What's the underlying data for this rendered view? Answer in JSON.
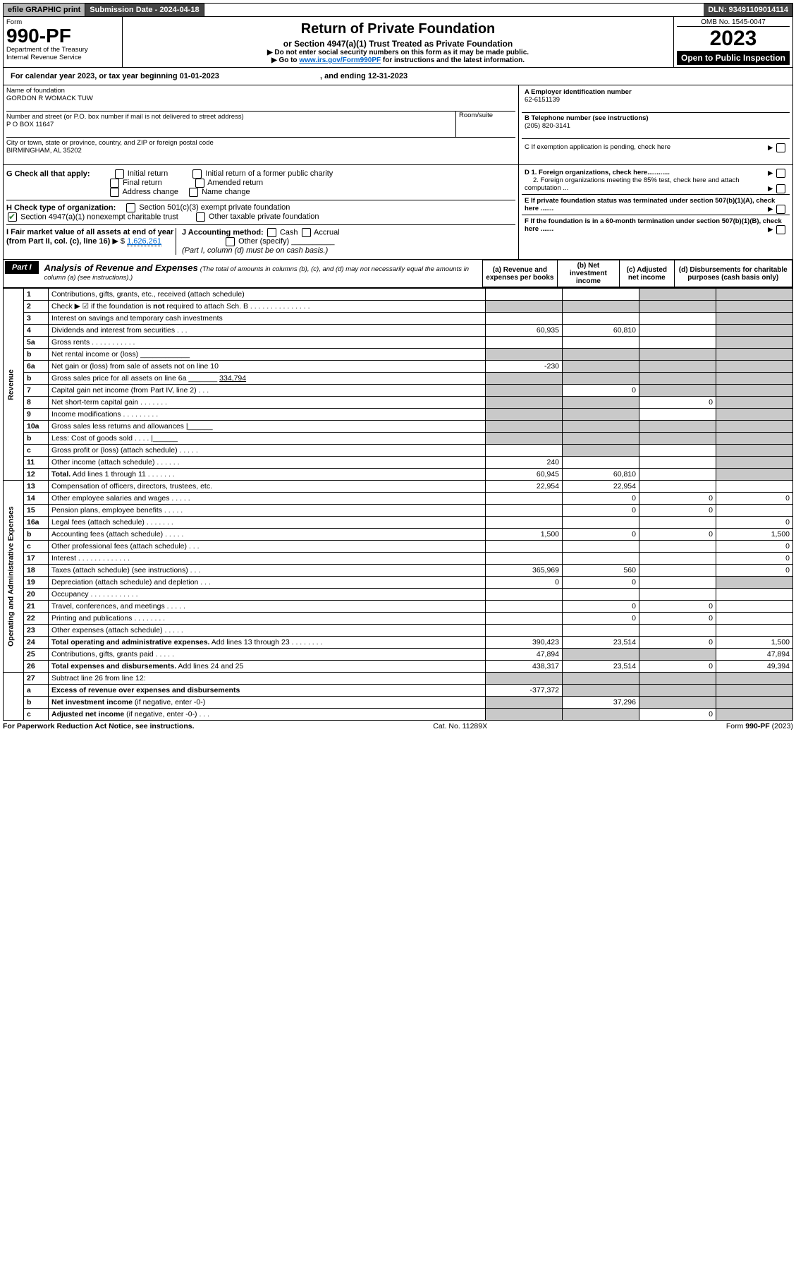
{
  "topbar": {
    "efile": "efile GRAPHIC print",
    "submission": "Submission Date - 2024-04-18",
    "dln": "DLN: 93491109014114"
  },
  "header": {
    "form_word": "Form",
    "form_num": "990-PF",
    "dept": "Department of the Treasury",
    "irs": "Internal Revenue Service",
    "title": "Return of Private Foundation",
    "subtitle": "or Section 4947(a)(1) Trust Treated as Private Foundation",
    "instr1": "▶ Do not enter social security numbers on this form as it may be made public.",
    "instr2_pre": "▶ Go to ",
    "instr2_link": "www.irs.gov/Form990PF",
    "instr2_post": " for instructions and the latest information.",
    "omb": "OMB No. 1545-0047",
    "year": "2023",
    "open": "Open to Public Inspection"
  },
  "calendar": {
    "text_pre": "For calendar year 2023, or tax year beginning ",
    "begin": "01-01-2023",
    "text_mid": " , and ending ",
    "end": "12-31-2023"
  },
  "entity": {
    "name_lbl": "Name of foundation",
    "name": "GORDON R WOMACK TUW",
    "addr_lbl": "Number and street (or P.O. box number if mail is not delivered to street address)",
    "room_lbl": "Room/suite",
    "addr": "P O BOX 11647",
    "city_lbl": "City or town, state or province, country, and ZIP or foreign postal code",
    "city": "BIRMINGHAM, AL  35202",
    "ein_lbl": "A Employer identification number",
    "ein": "62-6151139",
    "phone_lbl": "B Telephone number (see instructions)",
    "phone": "(205) 820-3141",
    "c_lbl": "C If exemption application is pending, check here"
  },
  "checks": {
    "g_lbl": "G Check all that apply:",
    "g_opts": [
      "Initial return",
      "Final return",
      "Address change",
      "Initial return of a former public charity",
      "Amended return",
      "Name change"
    ],
    "h_lbl": "H Check type of organization:",
    "h_501": "Section 501(c)(3) exempt private foundation",
    "h_4947": "Section 4947(a)(1) nonexempt charitable trust",
    "h_other": "Other taxable private foundation",
    "d1": "D 1. Foreign organizations, check here............",
    "d2": "2. Foreign organizations meeting the 85% test, check here and attach computation ...",
    "e": "E  If private foundation status was terminated under section 507(b)(1)(A), check here .......",
    "f": "F  If the foundation is in a 60-month termination under section 507(b)(1)(B), check here .......",
    "i_lbl": "I Fair market value of all assets at end of year (from Part II, col. (c), line 16)",
    "i_val": "1,626,261",
    "j_lbl": "J Accounting method:",
    "j_cash": "Cash",
    "j_accrual": "Accrual",
    "j_other": "Other (specify)",
    "j_note": "(Part I, column (d) must be on cash basis.)"
  },
  "part1": {
    "label": "Part I",
    "title": "Analysis of Revenue and Expenses",
    "title_note": " (The total of amounts in columns (b), (c), and (d) may not necessarily equal the amounts in column (a) (see instructions).)",
    "col_a": "(a)  Revenue and expenses per books",
    "col_b": "(b)  Net investment income",
    "col_c": "(c)  Adjusted net income",
    "col_d": "(d)  Disbursements for charitable purposes (cash basis only)"
  },
  "sections": {
    "revenue": "Revenue",
    "expenses": "Operating and Administrative Expenses"
  },
  "rows": [
    {
      "n": "1",
      "t": "Contributions, gifts, grants, etc., received (attach schedule)",
      "a": "",
      "b": "",
      "c": "grey",
      "d": "grey"
    },
    {
      "n": "2",
      "t": "Check ▶ ☑ if the foundation is <b>not</b> required to attach Sch. B   .  .  .  .  .  .  .  .  .  .  .  .  .  .  .",
      "a": "grey",
      "b": "grey",
      "c": "grey",
      "d": "grey"
    },
    {
      "n": "3",
      "t": "Interest on savings and temporary cash investments",
      "a": "",
      "b": "",
      "c": "",
      "d": "grey"
    },
    {
      "n": "4",
      "t": "Dividends and interest from securities   .   .   .",
      "a": "60,935",
      "b": "60,810",
      "c": "",
      "d": "grey"
    },
    {
      "n": "5a",
      "t": "Gross rents   .   .   .   .   .   .   .   .   .   .   .",
      "a": "",
      "b": "",
      "c": "",
      "d": "grey"
    },
    {
      "n": "b",
      "t": "Net rental income or (loss)  ____________",
      "a": "grey",
      "b": "grey",
      "c": "grey",
      "d": "grey"
    },
    {
      "n": "6a",
      "t": "Net gain or (loss) from sale of assets not on line 10",
      "a": "-230",
      "b": "grey",
      "c": "grey",
      "d": "grey"
    },
    {
      "n": "b",
      "t": "Gross sales price for all assets on line 6a _______ <u>334,794</u>",
      "a": "grey",
      "b": "grey",
      "c": "grey",
      "d": "grey"
    },
    {
      "n": "7",
      "t": "Capital gain net income (from Part IV, line 2)   .   .   .",
      "a": "grey",
      "b": "0",
      "c": "grey",
      "d": "grey"
    },
    {
      "n": "8",
      "t": "Net short-term capital gain   .   .   .   .   .   .   .",
      "a": "grey",
      "b": "grey",
      "c": "0",
      "d": "grey"
    },
    {
      "n": "9",
      "t": "Income modifications   .   .   .   .   .   .   .   .   .",
      "a": "grey",
      "b": "grey",
      "c": "",
      "d": "grey"
    },
    {
      "n": "10a",
      "t": "Gross sales less returns and allowances  |______",
      "a": "grey",
      "b": "grey",
      "c": "grey",
      "d": "grey"
    },
    {
      "n": "b",
      "t": "Less: Cost of goods sold   .   .   .   .   |______",
      "a": "grey",
      "b": "grey",
      "c": "grey",
      "d": "grey"
    },
    {
      "n": "c",
      "t": "Gross profit or (loss) (attach schedule)   .   .   .   .   .",
      "a": "",
      "b": "grey",
      "c": "",
      "d": "grey"
    },
    {
      "n": "11",
      "t": "Other income (attach schedule)   .   .   .   .   .   .",
      "a": "240",
      "b": "",
      "c": "",
      "d": "grey"
    },
    {
      "n": "12",
      "t": "<b>Total.</b> Add lines 1 through 11   .   .   .   .   .   .   .",
      "a": "60,945",
      "b": "60,810",
      "c": "",
      "d": "grey"
    }
  ],
  "exp_rows": [
    {
      "n": "13",
      "t": "Compensation of officers, directors, trustees, etc.",
      "a": "22,954",
      "b": "22,954",
      "c": "",
      "d": ""
    },
    {
      "n": "14",
      "t": "Other employee salaries and wages   .   .   .   .   .",
      "a": "",
      "b": "0",
      "c": "0",
      "d": "0"
    },
    {
      "n": "15",
      "t": "Pension plans, employee benefits   .   .   .   .   .",
      "a": "",
      "b": "0",
      "c": "0",
      "d": ""
    },
    {
      "n": "16a",
      "t": "Legal fees (attach schedule)  .   .   .   .   .   .   .",
      "a": "",
      "b": "",
      "c": "",
      "d": "0"
    },
    {
      "n": "b",
      "t": "Accounting fees (attach schedule)  .   .   .   .   .",
      "a": "1,500",
      "b": "0",
      "c": "0",
      "d": "1,500"
    },
    {
      "n": "c",
      "t": "Other professional fees (attach schedule)   .   .   .",
      "a": "",
      "b": "",
      "c": "",
      "d": "0"
    },
    {
      "n": "17",
      "t": "Interest  .   .   .   .   .   .   .   .   .   .   .   .   .",
      "a": "",
      "b": "",
      "c": "",
      "d": "0"
    },
    {
      "n": "18",
      "t": "Taxes (attach schedule) (see instructions)   .   .   .",
      "a": "365,969",
      "b": "560",
      "c": "",
      "d": "0"
    },
    {
      "n": "19",
      "t": "Depreciation (attach schedule) and depletion   .   .   .",
      "a": "0",
      "b": "0",
      "c": "",
      "d": "grey"
    },
    {
      "n": "20",
      "t": "Occupancy  .   .   .   .   .   .   .   .   .   .   .   .",
      "a": "",
      "b": "",
      "c": "",
      "d": ""
    },
    {
      "n": "21",
      "t": "Travel, conferences, and meetings  .   .   .   .   .",
      "a": "",
      "b": "0",
      "c": "0",
      "d": ""
    },
    {
      "n": "22",
      "t": "Printing and publications  .   .   .   .   .   .   .   .",
      "a": "",
      "b": "0",
      "c": "0",
      "d": ""
    },
    {
      "n": "23",
      "t": "Other expenses (attach schedule)  .   .   .   .   .",
      "a": "",
      "b": "",
      "c": "",
      "d": ""
    },
    {
      "n": "24",
      "t": "<b>Total operating and administrative expenses.</b> Add lines 13 through 23   .   .   .   .   .   .   .   .",
      "a": "390,423",
      "b": "23,514",
      "c": "0",
      "d": "1,500"
    },
    {
      "n": "25",
      "t": "Contributions, gifts, grants paid   .   .   .   .   .",
      "a": "47,894",
      "b": "grey",
      "c": "grey",
      "d": "47,894"
    },
    {
      "n": "26",
      "t": "<b>Total expenses and disbursements.</b> Add lines 24 and 25",
      "a": "438,317",
      "b": "23,514",
      "c": "0",
      "d": "49,394"
    }
  ],
  "bottom_rows": [
    {
      "n": "27",
      "t": "Subtract line 26 from line 12:",
      "a": "grey",
      "b": "grey",
      "c": "grey",
      "d": "grey"
    },
    {
      "n": "a",
      "t": "<b>Excess of revenue over expenses and disbursements</b>",
      "a": "-377,372",
      "b": "grey",
      "c": "grey",
      "d": "grey"
    },
    {
      "n": "b",
      "t": "<b>Net investment income</b> (if negative, enter -0-)",
      "a": "grey",
      "b": "37,296",
      "c": "grey",
      "d": "grey"
    },
    {
      "n": "c",
      "t": "<b>Adjusted net income</b> (if negative, enter -0-)   .   .   .",
      "a": "grey",
      "b": "grey",
      "c": "0",
      "d": "grey"
    }
  ],
  "footer": {
    "left": "For Paperwork Reduction Act Notice, see instructions.",
    "mid": "Cat. No. 11289X",
    "right": "Form 990-PF (2023)"
  }
}
